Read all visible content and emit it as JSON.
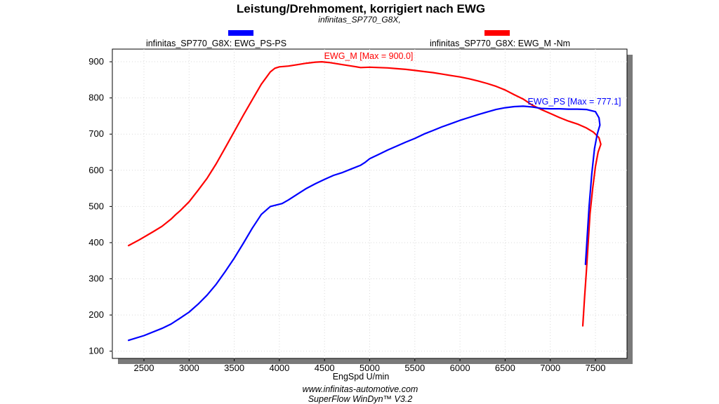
{
  "chart_data": {
    "type": "line",
    "title": "Leistung/Drehmoment, korrigiert nach EWG",
    "subtitle": "infinitas_SP770_G8X,",
    "xlabel": "EngSpd U/min",
    "ylabel": "",
    "xlim": [
      2150,
      7850
    ],
    "ylim": [
      80,
      935
    ],
    "x_ticks": [
      2500,
      3000,
      3500,
      4000,
      4500,
      5000,
      5500,
      6000,
      6500,
      7000,
      7500
    ],
    "y_ticks": [
      100,
      200,
      300,
      400,
      500,
      600,
      700,
      800,
      900
    ],
    "grid": true,
    "legend_placement": "top",
    "series": [
      {
        "name": "infinitas_SP770_G8X: EWG_PS-PS",
        "color": "#0000ff",
        "annotation": "EWG_PS [Max = 777.1]",
        "points": [
          [
            2330,
            130
          ],
          [
            2500,
            143
          ],
          [
            2700,
            163
          ],
          [
            2800,
            175
          ],
          [
            2900,
            191
          ],
          [
            3000,
            208
          ],
          [
            3100,
            230
          ],
          [
            3200,
            255
          ],
          [
            3300,
            285
          ],
          [
            3400,
            320
          ],
          [
            3500,
            357
          ],
          [
            3600,
            398
          ],
          [
            3700,
            440
          ],
          [
            3800,
            478
          ],
          [
            3900,
            500
          ],
          [
            4030,
            508
          ],
          [
            4100,
            518
          ],
          [
            4200,
            534
          ],
          [
            4300,
            550
          ],
          [
            4400,
            563
          ],
          [
            4500,
            575
          ],
          [
            4600,
            586
          ],
          [
            4700,
            594
          ],
          [
            4800,
            604
          ],
          [
            4900,
            614
          ],
          [
            4950,
            622
          ],
          [
            5000,
            632
          ],
          [
            5100,
            644
          ],
          [
            5200,
            656
          ],
          [
            5300,
            667
          ],
          [
            5400,
            678
          ],
          [
            5500,
            688
          ],
          [
            5600,
            700
          ],
          [
            5700,
            710
          ],
          [
            5800,
            720
          ],
          [
            5900,
            729
          ],
          [
            6000,
            738
          ],
          [
            6100,
            746
          ],
          [
            6200,
            754
          ],
          [
            6300,
            761
          ],
          [
            6400,
            768
          ],
          [
            6500,
            773
          ],
          [
            6600,
            776
          ],
          [
            6700,
            777.1
          ],
          [
            6800,
            775
          ],
          [
            6900,
            771
          ],
          [
            7000,
            770
          ],
          [
            7100,
            770
          ],
          [
            7200,
            769
          ],
          [
            7300,
            769
          ],
          [
            7400,
            768
          ],
          [
            7500,
            762
          ],
          [
            7540,
            745
          ],
          [
            7550,
            725
          ],
          [
            7520,
            700
          ],
          [
            7490,
            660
          ],
          [
            7460,
            590
          ],
          [
            7430,
            500
          ],
          [
            7410,
            420
          ],
          [
            7390,
            340
          ]
        ]
      },
      {
        "name": "infinitas_SP770_G8X: EWG_M -Nm",
        "color": "#ff0000",
        "annotation": "EWG_M  [Max = 900.0]",
        "points": [
          [
            2330,
            392
          ],
          [
            2450,
            408
          ],
          [
            2600,
            430
          ],
          [
            2700,
            445
          ],
          [
            2800,
            465
          ],
          [
            2850,
            477
          ],
          [
            2900,
            488
          ],
          [
            3000,
            513
          ],
          [
            3100,
            545
          ],
          [
            3200,
            578
          ],
          [
            3300,
            618
          ],
          [
            3400,
            662
          ],
          [
            3500,
            707
          ],
          [
            3600,
            752
          ],
          [
            3700,
            795
          ],
          [
            3800,
            838
          ],
          [
            3900,
            872
          ],
          [
            3950,
            882
          ],
          [
            4000,
            886
          ],
          [
            4100,
            888
          ],
          [
            4200,
            892
          ],
          [
            4300,
            896
          ],
          [
            4400,
            899
          ],
          [
            4470,
            900
          ],
          [
            4550,
            898
          ],
          [
            4700,
            892
          ],
          [
            4800,
            888
          ],
          [
            4900,
            884
          ],
          [
            5000,
            885
          ],
          [
            5100,
            884
          ],
          [
            5200,
            883
          ],
          [
            5300,
            881
          ],
          [
            5400,
            879
          ],
          [
            5500,
            876
          ],
          [
            5600,
            873
          ],
          [
            5700,
            870
          ],
          [
            5800,
            866
          ],
          [
            5900,
            862
          ],
          [
            6000,
            858
          ],
          [
            6100,
            853
          ],
          [
            6200,
            847
          ],
          [
            6300,
            840
          ],
          [
            6400,
            832
          ],
          [
            6500,
            822
          ],
          [
            6600,
            809
          ],
          [
            6700,
            797
          ],
          [
            6800,
            780
          ],
          [
            6900,
            768
          ],
          [
            7000,
            757
          ],
          [
            7100,
            746
          ],
          [
            7200,
            736
          ],
          [
            7300,
            728
          ],
          [
            7400,
            717
          ],
          [
            7480,
            705
          ],
          [
            7540,
            690
          ],
          [
            7560,
            672
          ],
          [
            7530,
            650
          ],
          [
            7500,
            610
          ],
          [
            7470,
            550
          ],
          [
            7440,
            480
          ],
          [
            7420,
            400
          ],
          [
            7400,
            320
          ],
          [
            7380,
            250
          ],
          [
            7360,
            170
          ]
        ]
      }
    ]
  },
  "footer": {
    "website": "www.infinitas-automotive.com",
    "software": "SuperFlow WinDyn™ V3.2"
  }
}
